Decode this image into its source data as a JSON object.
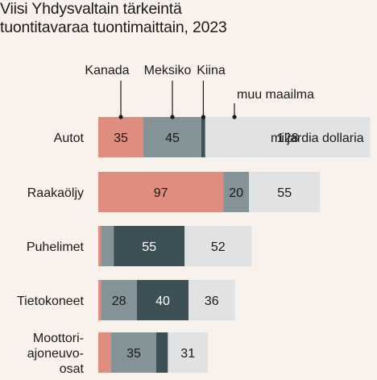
{
  "title_line1": "Viisi Yhdysvaltain tärkeintä",
  "title_line2": "tuontitavaraa tuontimaittain, 2023",
  "chart_data": {
    "type": "bar",
    "orientation": "horizontal",
    "stacked": true,
    "title": "Viisi Yhdysvaltain tärkeintä tuontitavaraa tuontimaittain, 2023",
    "unit_label": "miljardia dollaria",
    "categories": [
      [
        "Autot"
      ],
      [
        "Raakaöljy"
      ],
      [
        "Puhelimet"
      ],
      [
        "Tietokoneet"
      ],
      [
        "Moottori-",
        "ajoneuvo-",
        "osat"
      ]
    ],
    "series": [
      {
        "name": "Kanada",
        "color": "#df8d7e",
        "values": [
          35,
          97,
          2,
          2,
          10
        ],
        "labels": [
          "35",
          "97",
          "",
          "",
          ""
        ]
      },
      {
        "name": "Meksiko",
        "color": "#849397",
        "values": [
          45,
          20,
          10,
          28,
          35
        ],
        "labels": [
          "45",
          "20",
          "",
          "28",
          "35"
        ]
      },
      {
        "name": "Kiina",
        "color": "#3d5055",
        "values": [
          3,
          0,
          55,
          40,
          9
        ],
        "labels": [
          "",
          "",
          "55",
          "40",
          ""
        ]
      },
      {
        "name": "muu maailma",
        "color": "#e0e2e4",
        "values": [
          128,
          55,
          52,
          36,
          31
        ],
        "labels": [
          "128",
          "55",
          "52",
          "36",
          "31"
        ]
      }
    ],
    "label_colors": [
      "#1a1a1a",
      "#1a1a1a",
      "#ffffff",
      "#1a1a1a"
    ],
    "legend_position": "top"
  }
}
